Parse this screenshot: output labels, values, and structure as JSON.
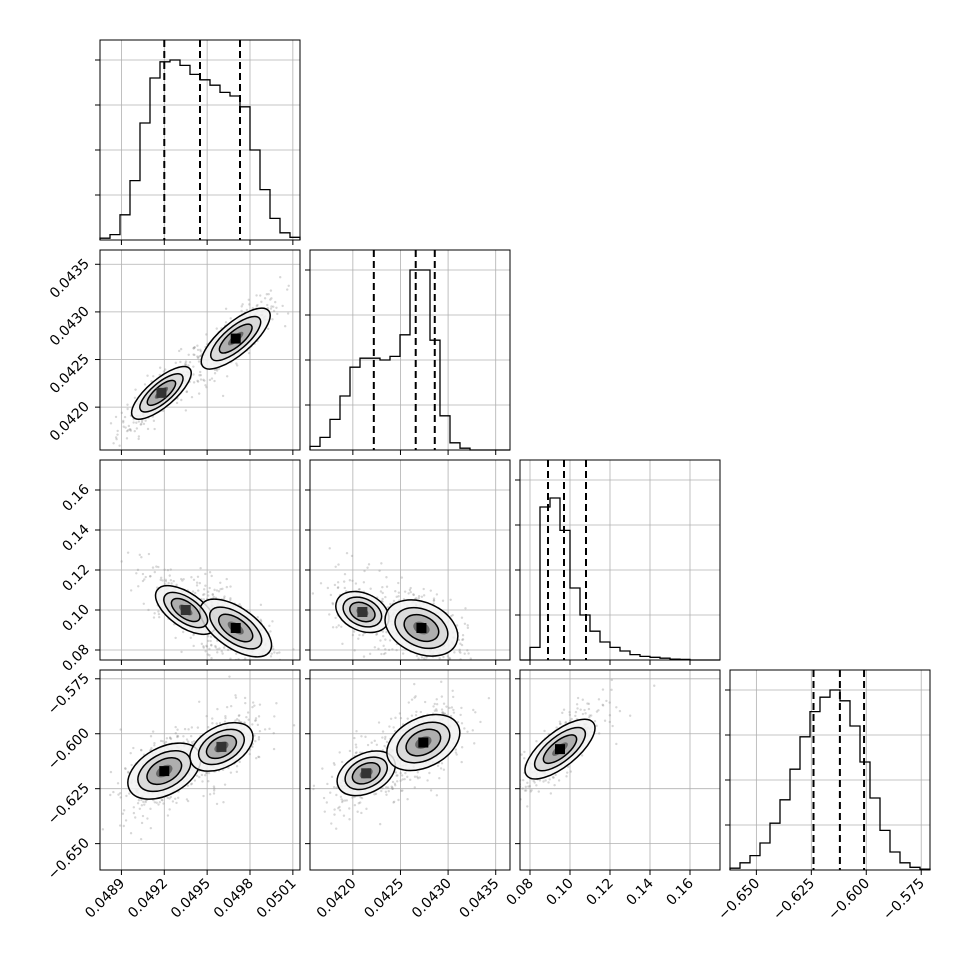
{
  "chart_data": {
    "type": "corner",
    "grid": true,
    "parameters": [
      {
        "range": [
          0.04875,
          0.05015
        ],
        "ticks": [
          0.0489,
          0.0492,
          0.0495,
          0.0498,
          0.0501
        ],
        "tick_labels": [
          "0.0489",
          "0.0492",
          "0.0495",
          "0.0498",
          "0.0501"
        ],
        "quantiles": [
          0.0492,
          0.04945,
          0.04973
        ],
        "hist_bins_x": [
          0.04875,
          0.04882,
          0.04889,
          0.04896,
          0.04903,
          0.0491,
          0.04917,
          0.04924,
          0.04931,
          0.04938,
          0.04945,
          0.04952,
          0.04959,
          0.04966,
          0.04973,
          0.0498,
          0.04987,
          0.04994,
          0.05001,
          0.05008,
          0.05015
        ],
        "hist_values": [
          0.01,
          0.03,
          0.14,
          0.33,
          0.65,
          0.9,
          0.99,
          1.0,
          0.97,
          0.92,
          0.89,
          0.86,
          0.82,
          0.8,
          0.74,
          0.5,
          0.28,
          0.12,
          0.04,
          0.015
        ]
      },
      {
        "range": [
          0.04155,
          0.04365
        ],
        "ticks": [
          0.042,
          0.0425,
          0.043,
          0.0435
        ],
        "tick_labels": [
          "0.0420",
          "0.0425",
          "0.0430",
          "0.0435"
        ],
        "quantiles": [
          0.04222,
          0.04266,
          0.04286
        ],
        "hist_bins_x": [
          0.04155,
          0.041655,
          0.04176,
          0.041865,
          0.04197,
          0.042075,
          0.04218,
          0.042285,
          0.04239,
          0.042495,
          0.0426,
          0.042705,
          0.04281,
          0.042915,
          0.04302,
          0.043125,
          0.04323,
          0.043335,
          0.04344,
          0.043545,
          0.04365
        ],
        "hist_values": [
          0.02,
          0.07,
          0.17,
          0.3,
          0.46,
          0.51,
          0.51,
          0.5,
          0.52,
          0.64,
          1.0,
          1.0,
          0.61,
          0.19,
          0.04,
          0.01,
          0.0,
          0.0,
          0.0,
          0.0
        ]
      },
      {
        "range": [
          0.075,
          0.175
        ],
        "ticks": [
          0.08,
          0.1,
          0.12,
          0.14,
          0.16
        ],
        "tick_labels": [
          "0.08",
          "0.10",
          "0.12",
          "0.14",
          "0.16"
        ],
        "quantiles": [
          0.089,
          0.097,
          0.108
        ],
        "hist_bins_x": [
          0.075,
          0.08,
          0.085,
          0.09,
          0.095,
          0.1,
          0.105,
          0.11,
          0.115,
          0.12,
          0.125,
          0.13,
          0.135,
          0.14,
          0.145,
          0.15,
          0.155,
          0.16,
          0.165,
          0.17,
          0.175
        ],
        "hist_values": [
          0.0,
          0.07,
          0.85,
          0.9,
          0.72,
          0.4,
          0.25,
          0.16,
          0.1,
          0.07,
          0.05,
          0.03,
          0.02,
          0.015,
          0.01,
          0.005,
          0.003,
          0.0,
          0.0,
          0.0
        ]
      },
      {
        "range": [
          -0.662,
          -0.571
        ],
        "ticks": [
          -0.65,
          -0.625,
          -0.6,
          -0.575
        ],
        "tick_labels": [
          "−0.650",
          "−0.625",
          "−0.600",
          "−0.575"
        ],
        "quantiles": [
          -0.624,
          -0.612,
          -0.601
        ],
        "hist_bins_x": [
          -0.662,
          -0.65745,
          -0.6529,
          -0.64835,
          -0.6438,
          -0.63925,
          -0.6347,
          -0.63015,
          -0.6256,
          -0.62105,
          -0.6165,
          -0.61195,
          -0.6074,
          -0.60285,
          -0.5983,
          -0.59375,
          -0.5892,
          -0.58465,
          -0.5801,
          -0.57555,
          -0.571
        ],
        "hist_values": [
          0.01,
          0.04,
          0.08,
          0.15,
          0.26,
          0.39,
          0.56,
          0.74,
          0.88,
          0.96,
          1.0,
          0.94,
          0.8,
          0.6,
          0.4,
          0.22,
          0.1,
          0.04,
          0.015,
          0.005
        ]
      }
    ],
    "pairs": [
      {
        "row": 1,
        "col": 0,
        "correlation": 0.85,
        "modes": [
          [
            0.04918,
            0.04215,
            0.7
          ],
          [
            0.0497,
            0.04272,
            1.0
          ]
        ]
      },
      {
        "row": 2,
        "col": 0,
        "correlation": -0.7,
        "modes": [
          [
            0.04935,
            0.1,
            0.65
          ],
          [
            0.0497,
            0.091,
            1.0
          ]
        ]
      },
      {
        "row": 2,
        "col": 1,
        "correlation": -0.45,
        "modes": [
          [
            0.0421,
            0.099,
            0.4
          ],
          [
            0.04272,
            0.091,
            1.0
          ]
        ]
      },
      {
        "row": 3,
        "col": 0,
        "correlation": 0.55,
        "modes": [
          [
            0.0492,
            -0.617,
            1.0
          ],
          [
            0.0496,
            -0.606,
            0.7
          ]
        ]
      },
      {
        "row": 3,
        "col": 1,
        "correlation": 0.5,
        "modes": [
          [
            0.04214,
            -0.618,
            0.55
          ],
          [
            0.04274,
            -0.604,
            1.0
          ]
        ]
      },
      {
        "row": 3,
        "col": 2,
        "correlation": 0.8,
        "modes": [
          [
            0.095,
            -0.607,
            1.0
          ]
        ]
      }
    ]
  }
}
